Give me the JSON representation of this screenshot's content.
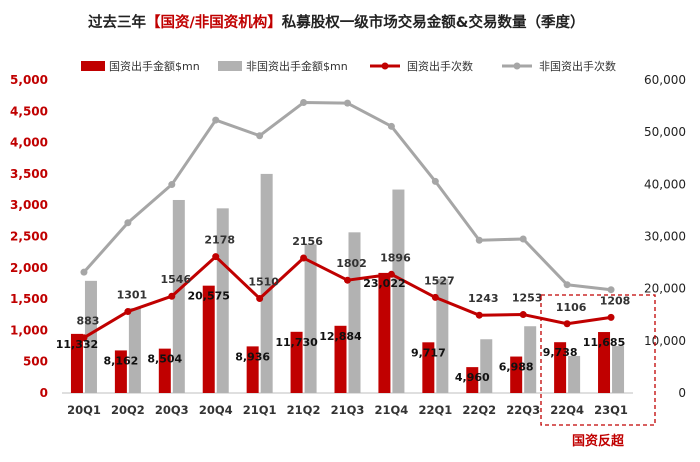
{
  "title": {
    "prefix": "过去三年",
    "accent": "【国资/非国资机构】",
    "suffix": "私募股权一级市场交易金额&交易数量（季度）"
  },
  "colors": {
    "state_bar": "#c00000",
    "nonstate_bar": "#b2b2b2",
    "state_line": "#c00000",
    "nonstate_line": "#a6a6a6",
    "callout": "#c00000"
  },
  "legend": {
    "state_amount": "国资出手金额$mn",
    "nonstate_amount": "非国资出手金额$mn",
    "state_count": "国资出手次数",
    "nonstate_count": "非国资出手次数"
  },
  "callout": {
    "label": "国资反超"
  },
  "chart_data": {
    "type": "bar",
    "categories": [
      "20Q1",
      "20Q2",
      "20Q3",
      "20Q4",
      "21Q1",
      "21Q2",
      "21Q3",
      "21Q4",
      "22Q1",
      "22Q2",
      "22Q3",
      "22Q4",
      "23Q1"
    ],
    "y_left": {
      "ticks": [
        "0",
        "500",
        "1,000",
        "1,500",
        "2,000",
        "2,500",
        "3,000",
        "3,500",
        "4,000",
        "4,500",
        "5,000"
      ],
      "range": [
        0,
        5000
      ]
    },
    "y_right": {
      "ticks": [
        "0",
        "10,000",
        "20,000",
        "30,000",
        "40,000",
        "50,000",
        "60,000"
      ],
      "range": [
        0,
        60000
      ]
    },
    "grid": false,
    "legend_position": "top",
    "series": [
      {
        "name": "国资出手金额$mn",
        "type": "bar",
        "axis": "right",
        "values": [
          11332,
          8162,
          8504,
          20575,
          8936,
          11730,
          12884,
          23022,
          9717,
          4960,
          6988,
          9738,
          11685
        ],
        "labels": [
          "11,332",
          "8,162",
          "8,504",
          "20,575",
          "8,936",
          "11,730",
          "12,884",
          "23,022",
          "9,717",
          "4,960",
          "6,988",
          "9,738",
          "11,685"
        ]
      },
      {
        "name": "非国资出手金额$mn",
        "type": "bar",
        "axis": "right",
        "values": [
          21500,
          16300,
          37000,
          35400,
          42000,
          28500,
          30800,
          39000,
          21900,
          10300,
          12800,
          7100,
          9000
        ]
      },
      {
        "name": "国资出手次数",
        "type": "line",
        "axis": "left",
        "values": [
          883,
          1301,
          1546,
          2178,
          1510,
          2156,
          1802,
          1896,
          1527,
          1243,
          1253,
          1106,
          1208
        ],
        "labels": [
          "883",
          "1301",
          "1546",
          "2178",
          "1510",
          "2156",
          "1802",
          "1896",
          "1527",
          "1243",
          "1253",
          "1106",
          "1208"
        ]
      },
      {
        "name": "非国资出手次数",
        "type": "line",
        "axis": "left",
        "values": [
          1930,
          2720,
          3330,
          4360,
          4110,
          4640,
          4630,
          4260,
          3380,
          2440,
          2460,
          1730,
          1650
        ]
      }
    ]
  }
}
